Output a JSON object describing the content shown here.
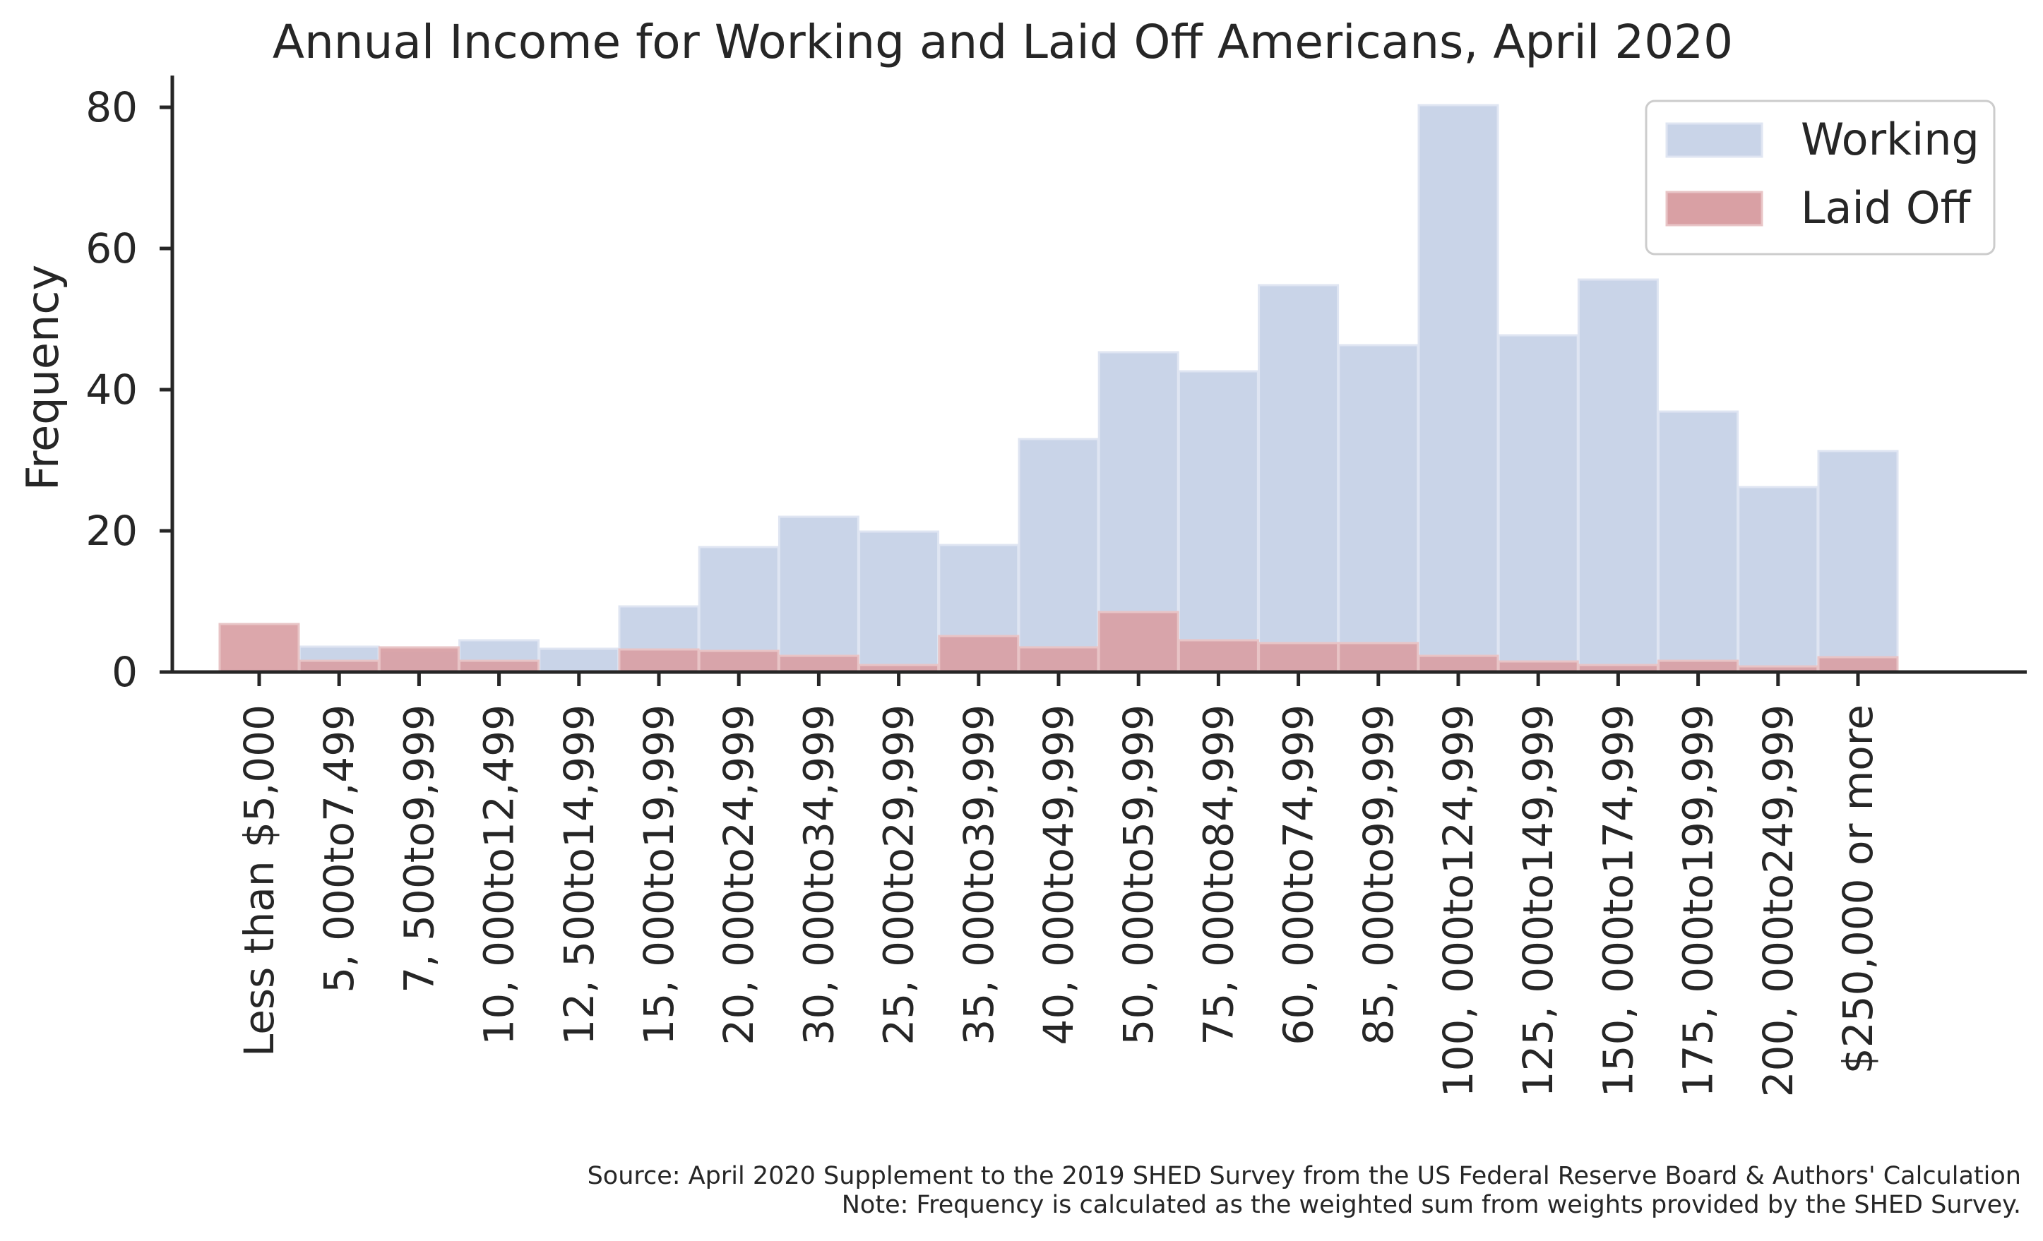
{
  "chart_data": {
    "type": "bar",
    "title": "Annual Income for Working and Laid Off Americans, April 2020",
    "xlabel": "",
    "ylabel": "Frequency",
    "ylim": [
      0,
      85
    ],
    "yticks": [
      0,
      20,
      40,
      60,
      80
    ],
    "grid": false,
    "legend_position": "top-right",
    "categories": [
      "Less than $5,000",
      "5, 000to7,499",
      "7, 500to9,999",
      "10, 000to12,499",
      "12, 500to14,999",
      "15, 000to19,999",
      "20, 000to24,999",
      "30, 000to34,999",
      "25, 000to29,999",
      "35, 000to39,999",
      "40, 000to49,999",
      "50, 000to59,999",
      "75, 000to84,999",
      "60, 000to74,999",
      "85, 000to99,999",
      "100, 000to124,999",
      "125, 000to149,999",
      "150, 000to174,999",
      "175, 000to199,999",
      "200, 000to249,999",
      "$250,000 or more"
    ],
    "series": [
      {
        "name": "Working",
        "color": "#c9d4e8",
        "edge": "#dfe5f2",
        "values": [
          0.3,
          3.6,
          3.0,
          4.5,
          3.3,
          9.3,
          17.7,
          22.0,
          19.9,
          18.0,
          33.0,
          45.3,
          42.6,
          54.8,
          46.3,
          80.3,
          47.7,
          55.6,
          36.9,
          26.2,
          31.3
        ]
      },
      {
        "name": "Laid Off",
        "color": "#d9a0a4",
        "edge": "#e8c4c6",
        "values": [
          6.8,
          1.6,
          3.5,
          1.6,
          0.1,
          3.2,
          3.0,
          2.3,
          1.0,
          5.1,
          3.5,
          8.5,
          4.5,
          4.1,
          4.1,
          2.3,
          1.5,
          1.0,
          1.6,
          0.8,
          2.1
        ]
      }
    ],
    "notes": [
      "Source: April 2020 Supplement to the 2019 SHED Survey from the US Federal Reserve Board & Authors' Calculation",
      "Note: Frequency is calculated as the weighted sum from weights provided by the SHED Survey."
    ]
  }
}
